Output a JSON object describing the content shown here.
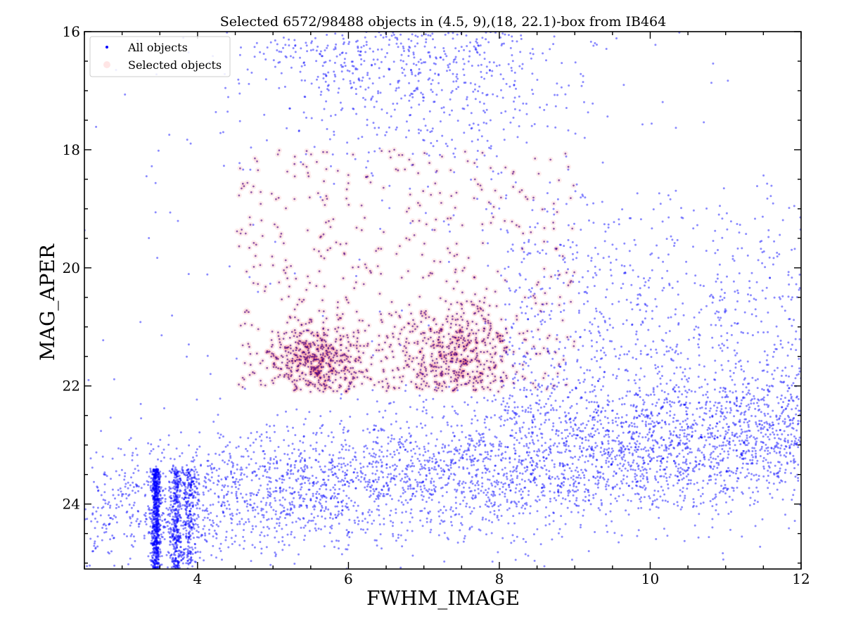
{
  "chart_data": {
    "type": "scatter",
    "title": "Selected 6572/98488 objects in (4.5, 9),(18, 22.1)-box from IB464",
    "xlabel": "FWHM_IMAGE",
    "ylabel": "MAG_APER",
    "xlim": [
      2.5,
      12
    ],
    "ylim": [
      25.1,
      16
    ],
    "y_inverted": true,
    "xticks": [
      4,
      6,
      8,
      10,
      12
    ],
    "yticks": [
      16,
      18,
      20,
      22,
      24
    ],
    "grid": false,
    "legend_position": "top-left",
    "selection_box": {
      "x": [
        4.5,
        9
      ],
      "y": [
        18,
        22.1
      ]
    },
    "counts": {
      "selected": 6572,
      "total": 98488
    },
    "series": [
      {
        "name": "All objects",
        "color": "#0000ff",
        "marker": "dot",
        "n_points": 98488
      },
      {
        "name": "Selected objects",
        "color": "#ff0000",
        "marker": "circle-translucent",
        "n_points": 6572
      }
    ]
  }
}
